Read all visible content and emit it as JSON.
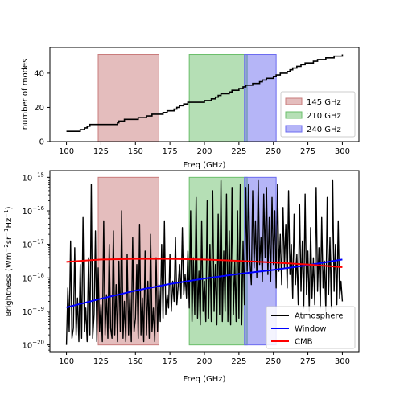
{
  "chart_data": [
    {
      "type": "line",
      "title": "",
      "xlabel": "Freq (GHz)",
      "ylabel": "number of modes",
      "xlim": [
        88,
        312
      ],
      "ylim": [
        0,
        55
      ],
      "xticks": [
        100,
        125,
        150,
        175,
        200,
        225,
        250,
        275,
        300
      ],
      "yticks": [
        0,
        20,
        40
      ],
      "grid": false,
      "legend_position": "right",
      "bands": [
        {
          "name": "145 GHz",
          "x0": 123,
          "x1": 167,
          "color": "#c97b7b"
        },
        {
          "name": "210 GHz",
          "x0": 189,
          "x1": 231,
          "color": "#6bbf6b"
        },
        {
          "name": "240 GHz",
          "x0": 229,
          "x1": 252,
          "color": "#6b6bf0"
        }
      ],
      "series": [
        {
          "color": "#000000",
          "x": [
            100,
            108,
            110,
            113,
            115,
            117,
            125,
            137,
            138,
            142,
            148,
            152,
            158,
            160,
            162,
            168,
            170,
            173,
            175,
            178,
            180,
            182,
            185,
            188,
            200,
            202,
            205,
            208,
            210,
            212,
            215,
            218,
            220,
            223,
            225,
            228,
            230,
            232,
            235,
            238,
            240,
            242,
            245,
            248,
            250,
            252,
            255,
            258,
            260,
            262,
            264,
            267,
            270,
            273,
            276,
            279,
            282,
            285,
            288,
            291,
            294,
            297,
            300
          ],
          "y": [
            6,
            6,
            7,
            8,
            9,
            10,
            10,
            11,
            12,
            13,
            13,
            14,
            15,
            15,
            16,
            16,
            17,
            18,
            18,
            19,
            20,
            21,
            22,
            23,
            24,
            24,
            25,
            26,
            27,
            28,
            28,
            29,
            30,
            30,
            31,
            32,
            33,
            33,
            34,
            34,
            35,
            36,
            37,
            37,
            38,
            39,
            40,
            40,
            41,
            42,
            43,
            44,
            45,
            46,
            46,
            47,
            48,
            48,
            49,
            49,
            50,
            50,
            51
          ]
        }
      ]
    },
    {
      "type": "line",
      "title": "",
      "xlabel": "Freq (GHz)",
      "ylabel": "Brightness (Wm",
      "ylabel_sup1": "−2",
      "ylabel_mid1": "sr",
      "ylabel_sup2": "−1",
      "ylabel_mid2": "Hz",
      "ylabel_sup3": "−1",
      "ylabel_end": ")",
      "log_y": true,
      "xlim": [
        88,
        312
      ],
      "ylim_log10": [
        -20.2,
        -14.8
      ],
      "xticks": [
        100,
        125,
        150,
        175,
        200,
        225,
        250,
        275,
        300
      ],
      "yticks_exp": [
        -20,
        -19,
        -18,
        -17,
        -16,
        -15
      ],
      "ytick_base": "10",
      "grid": false,
      "legend_position": "lower-right",
      "bands": [
        {
          "x0": 123,
          "x1": 167,
          "color": "#c97b7b"
        },
        {
          "x0": 189,
          "x1": 231,
          "color": "#6bbf6b"
        },
        {
          "x0": 229,
          "x1": 252,
          "color": "#6b6bf0"
        }
      ],
      "series": [
        {
          "name": "Atmosphere",
          "color": "#000000",
          "x": [
            100,
            101,
            102,
            103,
            104,
            105,
            106,
            107,
            108,
            109,
            110,
            111,
            112,
            113,
            114,
            115,
            116,
            117,
            118,
            119,
            120,
            121,
            122,
            123,
            124,
            125,
            126,
            127,
            128,
            129,
            130,
            131,
            132,
            133,
            134,
            135,
            136,
            137,
            138,
            139,
            140,
            141,
            142,
            143,
            144,
            145,
            146,
            147,
            148,
            149,
            150,
            151,
            152,
            153,
            154,
            155,
            156,
            157,
            158,
            159,
            160,
            161,
            162,
            163,
            164,
            165,
            166,
            167,
            168,
            169,
            170,
            171,
            172,
            173,
            174,
            175,
            176,
            177,
            178,
            179,
            180,
            181,
            182,
            183,
            184,
            185,
            186,
            187,
            188,
            189,
            190,
            191,
            192,
            193,
            194,
            195,
            196,
            197,
            198,
            199,
            200,
            201,
            202,
            203,
            204,
            205,
            206,
            207,
            208,
            209,
            210,
            211,
            212,
            213,
            214,
            215,
            216,
            217,
            218,
            219,
            220,
            221,
            222,
            223,
            224,
            225,
            226,
            227,
            228,
            229,
            230,
            231,
            232,
            233,
            234,
            235,
            236,
            237,
            238,
            239,
            240,
            241,
            242,
            243,
            244,
            245,
            246,
            247,
            248,
            249,
            250,
            251,
            252,
            253,
            254,
            255,
            256,
            257,
            258,
            259,
            260,
            261,
            262,
            263,
            264,
            265,
            266,
            267,
            268,
            269,
            270,
            271,
            272,
            273,
            274,
            275,
            276,
            277,
            278,
            279,
            280,
            281,
            282,
            283,
            284,
            285,
            286,
            287,
            288,
            289,
            290,
            291,
            292,
            293,
            294,
            295,
            296,
            297,
            298,
            299,
            300
          ],
          "y_log10": [
            -20.0,
            -18.3,
            -19.6,
            -16.9,
            -19.8,
            -19.5,
            -17.1,
            -19.7,
            -18.6,
            -19.9,
            -17.6,
            -19.8,
            -16.2,
            -19.6,
            -18.9,
            -19.9,
            -17.4,
            -19.7,
            -15.2,
            -19.8,
            -19.1,
            -16.6,
            -19.9,
            -17.7,
            -19.6,
            -18.8,
            -19.9,
            -16.3,
            -19.7,
            -18.5,
            -19.8,
            -17.0,
            -19.5,
            -19.8,
            -16.6,
            -19.7,
            -18.2,
            -19.9,
            -17.5,
            -19.6,
            -16.0,
            -19.8,
            -18.7,
            -19.9,
            -17.3,
            -19.7,
            -18.4,
            -19.9,
            -16.8,
            -19.6,
            -19.2,
            -17.6,
            -19.8,
            -16.4,
            -19.7,
            -18.6,
            -19.9,
            -17.2,
            -19.7,
            -18.1,
            -19.8,
            -16.7,
            -19.6,
            -18.9,
            -19.9,
            -17.4,
            -19.6,
            -18.2,
            -19.3,
            -17.0,
            -19.2,
            -16.3,
            -19.1,
            -18.5,
            -18.9,
            -17.3,
            -19.0,
            -18.1,
            -18.7,
            -16.8,
            -18.8,
            -18.2,
            -17.6,
            -18.6,
            -16.5,
            -18.5,
            -17.9,
            -18.6,
            -17.2,
            -18.9,
            -16.0,
            -19.3,
            -17.4,
            -19.1,
            -15.6,
            -19.2,
            -17.8,
            -19.4,
            -16.3,
            -19.0,
            -18.1,
            -19.3,
            -15.7,
            -19.2,
            -17.0,
            -19.3,
            -15.4,
            -19.0,
            -17.6,
            -19.4,
            -16.1,
            -19.1,
            -15.1,
            -19.3,
            -17.2,
            -19.0,
            -15.5,
            -19.3,
            -16.6,
            -19.4,
            -15.3,
            -19.1,
            -17.5,
            -19.3,
            -16.0,
            -19.2,
            -15.2,
            -19.4,
            -16.9,
            -18.8,
            -15.3,
            -17.8,
            -15.2,
            -17.5,
            -18.2,
            -15.4,
            -17.7,
            -16.3,
            -18.0,
            -15.1,
            -17.6,
            -16.8,
            -18.1,
            -15.5,
            -17.4,
            -15.3,
            -17.9,
            -16.2,
            -18.1,
            -15.6,
            -17.6,
            -16.0,
            -18.3,
            -15.2,
            -17.8,
            -16.7,
            -18.2,
            -15.9,
            -17.7,
            -16.4,
            -18.3,
            -15.4,
            -17.9,
            -17.0,
            -18.6,
            -16.1,
            -18.2,
            -17.3,
            -18.8,
            -15.8,
            -18.4,
            -16.9,
            -18.9,
            -15.5,
            -18.5,
            -17.2,
            -19.0,
            -16.5,
            -18.6,
            -17.4,
            -18.8,
            -15.3,
            -18.4,
            -17.1,
            -18.9,
            -16.2,
            -18.3,
            -17.5,
            -19.0,
            -15.6,
            -18.5,
            -16.8,
            -18.9,
            -15.1,
            -18.4,
            -17.0,
            -18.8,
            -16.3,
            -18.6,
            -18.1,
            -18.7
          ]
        },
        {
          "name": "Window",
          "color": "#0000ff",
          "x": [
            100,
            125,
            150,
            175,
            200,
            225,
            250,
            275,
            300
          ],
          "y_log10": [
            -18.88,
            -18.62,
            -18.38,
            -18.18,
            -18.02,
            -17.88,
            -17.76,
            -17.62,
            -17.45
          ]
        },
        {
          "name": "CMB",
          "color": "#ff0000",
          "x": [
            100,
            125,
            150,
            175,
            200,
            225,
            250,
            275,
            300
          ],
          "y_log10": [
            -17.52,
            -17.45,
            -17.43,
            -17.43,
            -17.45,
            -17.49,
            -17.54,
            -17.6,
            -17.68
          ]
        }
      ]
    }
  ]
}
